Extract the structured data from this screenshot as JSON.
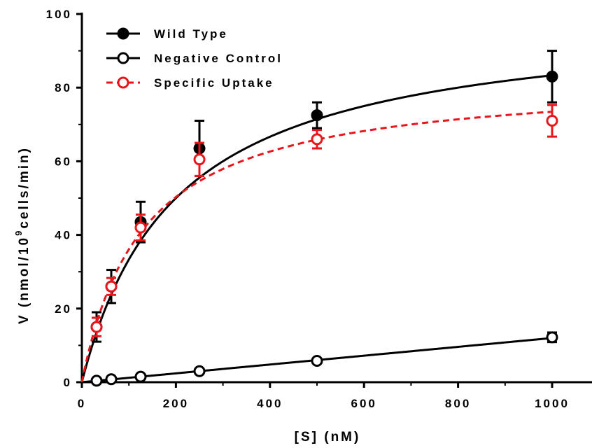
{
  "chart_data": {
    "type": "scatter",
    "xlabel": "[S] (nM)",
    "ylabel_parts": {
      "prefix": "V (nmol/10",
      "sup": "9",
      "suffix": "cells/min)"
    },
    "xlim": [
      0,
      1000
    ],
    "ylim": [
      0,
      100
    ],
    "x_ticks": [
      0,
      200,
      400,
      600,
      800,
      1000
    ],
    "y_ticks": [
      0,
      20,
      40,
      60,
      80,
      100
    ],
    "grid": false,
    "legend_position": "top-left",
    "series": [
      {
        "name": "Wild Type",
        "color": "#000000",
        "marker": "filled-circle",
        "line": "solid",
        "fit": {
          "model": "michaelis-menten",
          "vmax": 100,
          "km": 200
        },
        "points": [
          {
            "x": 31.25,
            "y": 15.0,
            "err": 4.0
          },
          {
            "x": 62.5,
            "y": 26.0,
            "err": 4.5
          },
          {
            "x": 125,
            "y": 43.5,
            "err": 5.5
          },
          {
            "x": 250,
            "y": 63.5,
            "err": 7.5
          },
          {
            "x": 500,
            "y": 72.5,
            "err": 3.5
          },
          {
            "x": 1000,
            "y": 83.0,
            "err": 7.0
          }
        ]
      },
      {
        "name": "Negative Control",
        "color": "#000000",
        "marker": "open-circle",
        "line": "solid",
        "fit": {
          "model": "linear",
          "slope": 0.012,
          "intercept": 0
        },
        "points": [
          {
            "x": 31.25,
            "y": 0.4,
            "err": 0.2
          },
          {
            "x": 62.5,
            "y": 0.8,
            "err": 0.2
          },
          {
            "x": 125,
            "y": 1.5,
            "err": 0.3
          },
          {
            "x": 250,
            "y": 3.0,
            "err": 0.4
          },
          {
            "x": 500,
            "y": 5.8,
            "err": 0.5
          },
          {
            "x": 1000,
            "y": 12.2,
            "err": 1.3
          }
        ]
      },
      {
        "name": "Specific Uptake",
        "color": "#e8161b",
        "marker": "open-circle",
        "line": "dashed",
        "fit": {
          "model": "michaelis-menten",
          "vmax": 83,
          "km": 130
        },
        "points": [
          {
            "x": 31.25,
            "y": 15.0,
            "err": 2.5
          },
          {
            "x": 62.5,
            "y": 26.0,
            "err": 2.3
          },
          {
            "x": 125,
            "y": 42.0,
            "err": 3.5
          },
          {
            "x": 250,
            "y": 60.5,
            "err": 4.5
          },
          {
            "x": 500,
            "y": 66.0,
            "err": 2.5
          },
          {
            "x": 1000,
            "y": 71.0,
            "err": 4.3
          }
        ]
      }
    ]
  }
}
